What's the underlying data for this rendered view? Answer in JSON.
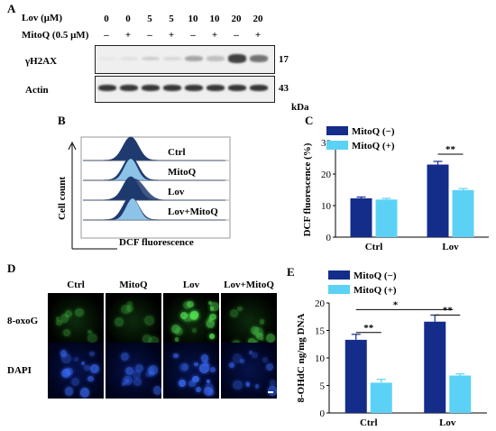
{
  "panel_a": {
    "letter": "A",
    "lov_label": "Lov (μM)",
    "lov_values": [
      "0",
      "0",
      "5",
      "5",
      "10",
      "10",
      "20",
      "20"
    ],
    "mitoq_label": "MitoQ (0.5 μM)",
    "mitoq_values": [
      "–",
      "+",
      "–",
      "+",
      "–",
      "+",
      "–",
      "+"
    ],
    "blots": [
      {
        "label": "γH2AX",
        "kda": "17",
        "intensity": [
          0.02,
          0.05,
          0.15,
          0.1,
          0.35,
          0.22,
          0.85,
          0.6
        ]
      },
      {
        "label": "Actin",
        "kda": "43",
        "intensity": [
          0.9,
          0.9,
          0.9,
          0.9,
          0.9,
          0.9,
          0.9,
          0.9
        ]
      }
    ],
    "kda_unit": "kDa"
  },
  "panel_b": {
    "letter": "B",
    "row_labels": [
      "Ctrl",
      "MitoQ",
      "Lov",
      "Lov+MitoQ"
    ],
    "y_label": "Cell count",
    "x_label": "DCF fluorescence",
    "colors": {
      "dark": "#1f3a6e",
      "light": "#8ec3e8"
    }
  },
  "panel_c": {
    "letter": "C",
    "chart_data": {
      "type": "bar",
      "categories": [
        "Ctrl",
        "Lov"
      ],
      "series": [
        {
          "name": "MitoQ (−)",
          "values": [
            12.3,
            23.0
          ],
          "errors": [
            0.4,
            1.0
          ],
          "color": "#142c8a"
        },
        {
          "name": "MitoQ (+)",
          "values": [
            11.9,
            14.9
          ],
          "errors": [
            0.4,
            0.5
          ],
          "color": "#5bd2f5"
        }
      ],
      "ylabel": "DCF fluorescence (%)",
      "ylim": [
        0,
        30
      ],
      "yticks": [
        "0",
        "10",
        "20",
        "30"
      ],
      "significance": [
        {
          "label": "**",
          "category": "Lov"
        }
      ],
      "legend": "top-left"
    }
  },
  "panel_d": {
    "letter": "D",
    "columns": [
      "Ctrl",
      "MitoQ",
      "Lov",
      "Lov+MitoQ"
    ],
    "rows": [
      "8-oxoG",
      "DAPI"
    ],
    "green_level": [
      0.15,
      0.1,
      0.9,
      0.35
    ],
    "blue_level": [
      0.6,
      0.5,
      0.8,
      0.5
    ]
  },
  "panel_e": {
    "letter": "E",
    "chart_data": {
      "type": "bar",
      "categories": [
        "Ctrl",
        "Lov"
      ],
      "series": [
        {
          "name": "MitoQ (−)",
          "values": [
            13.3,
            16.6
          ],
          "errors": [
            1.0,
            1.2
          ],
          "color": "#142c8a"
        },
        {
          "name": "MitoQ (+)",
          "values": [
            5.5,
            6.8
          ],
          "errors": [
            0.6,
            0.3
          ],
          "color": "#5bd2f5"
        }
      ],
      "ylabel": "8-OHdC ng/mg DNA",
      "ylim": [
        0,
        20
      ],
      "yticks": [
        "0",
        "5",
        "10",
        "15",
        "20"
      ],
      "significance": [
        {
          "label": "**",
          "category": "Ctrl"
        },
        {
          "label": "**",
          "category": "Lov"
        },
        {
          "label": "*",
          "category": "across"
        }
      ],
      "legend": "top-left"
    }
  }
}
